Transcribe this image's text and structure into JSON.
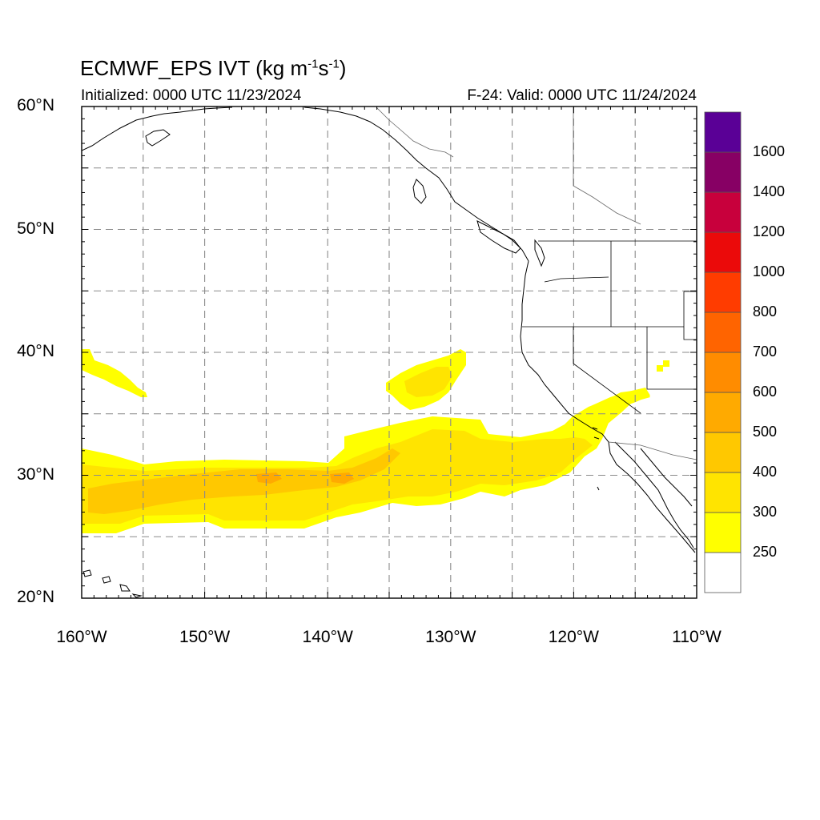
{
  "header": {
    "title_prefix": "ECMWF_EPS IVT (kg m",
    "title_exp1": "-1",
    "title_mid": "s",
    "title_exp2": "-1",
    "title_suffix": ")",
    "initialized": "Initialized: 0000 UTC 11/23/2024",
    "valid": "F-24: Valid: 0000 UTC 11/24/2024"
  },
  "map": {
    "lon_range": [
      -160,
      -110
    ],
    "lat_range": [
      20,
      60
    ],
    "lat_labels": [
      {
        "lat": 60,
        "text": "60°N"
      },
      {
        "lat": 50,
        "text": "50°N"
      },
      {
        "lat": 40,
        "text": "40°N"
      },
      {
        "lat": 30,
        "text": "30°N"
      },
      {
        "lat": 20,
        "text": "20°N"
      }
    ],
    "lon_labels": [
      {
        "lon": -160,
        "text": "160°W"
      },
      {
        "lon": -150,
        "text": "150°W"
      },
      {
        "lon": -140,
        "text": "140°W"
      },
      {
        "lon": -130,
        "text": "130°W"
      },
      {
        "lon": -120,
        "text": "120°W"
      },
      {
        "lon": -110,
        "text": "110°W"
      }
    ],
    "gridline_lats": [
      25,
      30,
      35,
      40,
      45,
      50,
      55
    ],
    "gridline_lons": [
      -155,
      -150,
      -145,
      -140,
      -135,
      -130,
      -125,
      -120,
      -115
    ],
    "grid_style": "dashed gray",
    "colors": {
      "c300": "#ffff00",
      "c400": "#ffe400",
      "c500": "#ffc800",
      "c600": "#ffaa00"
    }
  },
  "colorbar": {
    "levels": [
      {
        "color": "#ffffff",
        "label": "250"
      },
      {
        "color": "#ffff00",
        "label": "300"
      },
      {
        "color": "#ffe400",
        "label": "400"
      },
      {
        "color": "#ffc800",
        "label": "500"
      },
      {
        "color": "#ffaa00",
        "label": "600"
      },
      {
        "color": "#ff8c00",
        "label": "700"
      },
      {
        "color": "#ff6400",
        "label": "800"
      },
      {
        "color": "#ff3c00",
        "label": "1000"
      },
      {
        "color": "#eb0a0a",
        "label": "1200"
      },
      {
        "color": "#c8003c",
        "label": "1400"
      },
      {
        "color": "#870064",
        "label": "1600"
      },
      {
        "color": "#5a0096",
        "label": ""
      }
    ]
  }
}
